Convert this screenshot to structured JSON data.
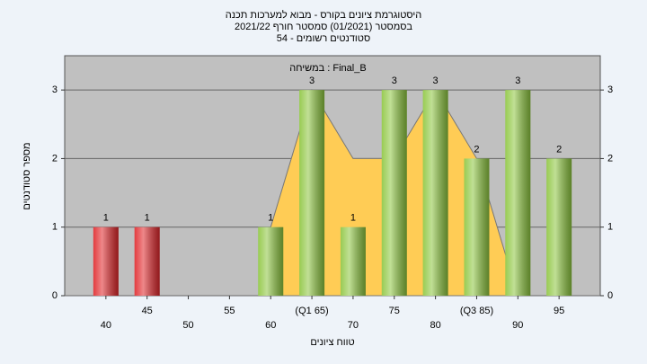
{
  "chart_data": {
    "type": "bar",
    "title": [
      "היסטוגרמת ציונים בקורס - מבוא למערכות תכנה",
      "בסמסטר  (01/2021)  סמסטר חורף 2021/22",
      "סטודנטים רשומים - 54"
    ],
    "annotation": "במשיחה : Final_B",
    "x_label": "טווח ציונים",
    "y_label": "מספר סטודנטים",
    "categories": [
      "40",
      "45",
      "50",
      "55",
      "60",
      "(Q1 65)",
      "70",
      "75",
      "80",
      "(Q3 85)",
      "90",
      "95"
    ],
    "values": [
      1,
      1,
      0,
      0,
      1,
      3,
      1,
      3,
      3,
      2,
      3,
      2
    ],
    "colors": [
      "#e0262a",
      "#e0262a",
      "#8dc63f",
      "#8dc63f",
      "#8dc63f",
      "#8dc63f",
      "#8dc63f",
      "#8dc63f",
      "#8dc63f",
      "#8dc63f",
      "#8dc63f",
      "#8dc63f"
    ],
    "area": {
      "color": "#ffcc55",
      "values": [
        null,
        null,
        null,
        null,
        1,
        3,
        2,
        2,
        3,
        2,
        0,
        null
      ]
    },
    "ylim": [
      0,
      3.5
    ],
    "yticks": [
      0,
      1,
      2,
      3
    ],
    "grid": true
  }
}
